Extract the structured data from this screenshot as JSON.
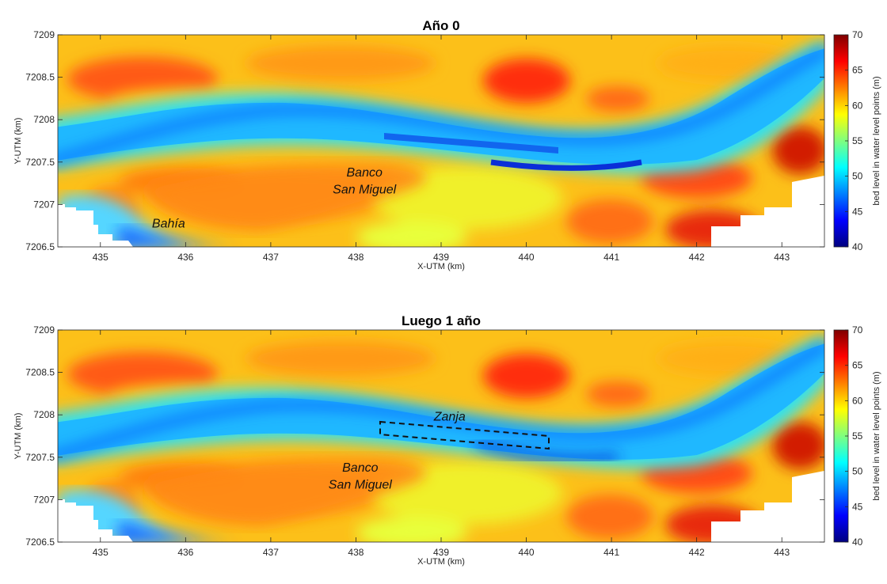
{
  "palette": [
    "#00007f",
    "#0000ff",
    "#007fff",
    "#00ffff",
    "#7fff7f",
    "#ffff00",
    "#ff7f00",
    "#ff0000",
    "#7f0000"
  ],
  "chart_data": [
    {
      "type": "heatmap",
      "title": "Año 0",
      "xlabel": "X-UTM (km)",
      "ylabel": "Y-UTM (km)",
      "xlim": [
        434.5,
        443.5
      ],
      "ylim": [
        7206.5,
        7209
      ],
      "x_ticks": [
        "435",
        "436",
        "437",
        "438",
        "439",
        "440",
        "441",
        "442",
        "443"
      ],
      "y_ticks": [
        "7206.5",
        "7207",
        "7207.5",
        "7208",
        "7208.5",
        "7209"
      ],
      "colorbar": {
        "label": "bed level in water level points (m)",
        "range": [
          40,
          70
        ],
        "ticks": [
          "40",
          "45",
          "50",
          "55",
          "60",
          "65",
          "70"
        ]
      },
      "annotations": [
        {
          "text": "Banco",
          "x": 438.1,
          "y": 7207.33
        },
        {
          "text": "San Miguel",
          "x": 438.1,
          "y": 7207.13
        },
        {
          "text": "Bahía",
          "x": 435.8,
          "y": 7206.73
        }
      ]
    },
    {
      "type": "heatmap",
      "title": "Luego 1 año",
      "xlabel": "X-UTM (km)",
      "ylabel": "Y-UTM (km)",
      "xlim": [
        434.5,
        443.5
      ],
      "ylim": [
        7206.5,
        7209
      ],
      "x_ticks": [
        "435",
        "436",
        "437",
        "438",
        "439",
        "440",
        "441",
        "442",
        "443"
      ],
      "y_ticks": [
        "7206.5",
        "7207",
        "7207.5",
        "7208",
        "7208.5",
        "7209"
      ],
      "colorbar": {
        "label": "bed level in water level points (m)",
        "range": [
          40,
          70
        ],
        "ticks": [
          "40",
          "45",
          "50",
          "55",
          "60",
          "65",
          "70"
        ]
      },
      "annotations": [
        {
          "text": "Zanja",
          "x": 439.1,
          "y": 7207.93
        },
        {
          "text": "Banco",
          "x": 438.05,
          "y": 7207.33
        },
        {
          "text": "San Miguel",
          "x": 438.05,
          "y": 7207.13
        }
      ]
    }
  ]
}
